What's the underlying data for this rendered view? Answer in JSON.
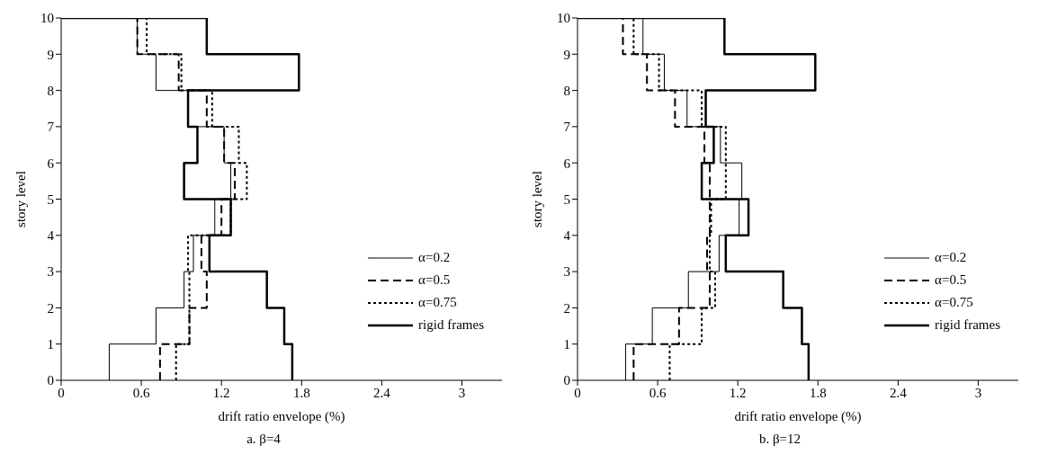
{
  "chart_data": [
    {
      "type": "line",
      "title": "a. β=4",
      "xlabel": "drift ratio envelope (%)",
      "ylabel": "story level",
      "xlim": [
        0,
        3.3
      ],
      "xticks": [
        0,
        0.6,
        1.2,
        1.8,
        2.4,
        3
      ],
      "ylim": [
        0,
        10
      ],
      "yticks": [
        0,
        1,
        2,
        3,
        4,
        5,
        6,
        7,
        8,
        9,
        10
      ],
      "legend": "bottom right",
      "marker": "none",
      "series": [
        {
          "name": "α=0.2",
          "color": "#000000",
          "line_style": "solid",
          "x": [
            0.36,
            0.36,
            0.71,
            0.71,
            0.92,
            0.92,
            0.99,
            0.99,
            1.15,
            1.15,
            1.27,
            1.27,
            1.22,
            1.22,
            0.95,
            0.95,
            0.71,
            0.71,
            0.57,
            0.57,
            0
          ],
          "values": [
            0,
            1,
            1,
            2,
            2,
            3,
            3,
            4,
            4,
            5,
            5,
            6,
            6,
            7,
            7,
            8,
            8,
            9,
            9,
            10,
            10
          ]
        },
        {
          "name": "α=0.5",
          "color": "#000000",
          "line_style": "dashed",
          "x": [
            0.74,
            0.74,
            0.96,
            0.96,
            1.09,
            1.09,
            1.05,
            1.05,
            1.2,
            1.2,
            1.3,
            1.3,
            1.22,
            1.22,
            1.09,
            1.09,
            0.88,
            0.88,
            0.57,
            0.57,
            0
          ],
          "values": [
            0,
            1,
            1,
            2,
            2,
            3,
            3,
            4,
            4,
            5,
            5,
            6,
            6,
            7,
            7,
            8,
            8,
            9,
            9,
            10,
            10
          ]
        },
        {
          "name": "α=0.75",
          "color": "#000000",
          "line_style": "dotted",
          "x": [
            0.86,
            0.86,
            0.96,
            0.96,
            0.96,
            0.96,
            0.95,
            0.95,
            1.27,
            1.27,
            1.39,
            1.39,
            1.33,
            1.33,
            1.13,
            1.13,
            0.9,
            0.9,
            0.64,
            0.64,
            0
          ],
          "values": [
            0,
            1,
            1,
            2,
            2,
            3,
            3,
            4,
            4,
            5,
            5,
            6,
            6,
            7,
            7,
            8,
            8,
            9,
            9,
            10,
            10
          ]
        },
        {
          "name": "rigid frames",
          "color": "#000000",
          "line_style": "solid",
          "x": [
            1.73,
            1.73,
            1.67,
            1.67,
            1.54,
            1.54,
            1.11,
            1.11,
            1.27,
            1.27,
            0.92,
            0.92,
            1.02,
            1.02,
            0.95,
            0.95,
            1.78,
            1.78,
            1.09,
            1.09,
            0
          ],
          "values": [
            0,
            1,
            1,
            2,
            2,
            3,
            3,
            4,
            4,
            5,
            5,
            6,
            6,
            7,
            7,
            8,
            8,
            9,
            9,
            10,
            10
          ]
        }
      ]
    },
    {
      "type": "line",
      "title": "b. β=12",
      "xlabel": "drift ratio envelope (%)",
      "ylabel": "story level",
      "xlim": [
        0,
        3.3
      ],
      "xticks": [
        0,
        0.6,
        1.2,
        1.8,
        2.4,
        3
      ],
      "ylim": [
        0,
        10
      ],
      "yticks": [
        0,
        1,
        2,
        3,
        4,
        5,
        6,
        7,
        8,
        9,
        10
      ],
      "legend": "bottom right",
      "marker": "none",
      "series": [
        {
          "name": "α=0.2",
          "color": "#000000",
          "line_style": "solid",
          "x": [
            0.36,
            0.36,
            0.56,
            0.56,
            0.83,
            0.83,
            1.06,
            1.06,
            1.21,
            1.21,
            1.23,
            1.23,
            1.07,
            1.07,
            0.82,
            0.82,
            0.65,
            0.65,
            0.49,
            0.49,
            0
          ],
          "values": [
            0,
            1,
            1,
            2,
            2,
            3,
            3,
            4,
            4,
            5,
            5,
            6,
            6,
            7,
            7,
            8,
            8,
            9,
            9,
            10,
            10
          ]
        },
        {
          "name": "α=0.5",
          "color": "#000000",
          "line_style": "dashed",
          "x": [
            0.42,
            0.42,
            0.76,
            0.76,
            0.99,
            0.99,
            0.97,
            0.97,
            0.99,
            0.99,
            0.99,
            0.99,
            0.95,
            0.95,
            0.73,
            0.73,
            0.52,
            0.52,
            0.34,
            0.34,
            0
          ],
          "values": [
            0,
            1,
            1,
            2,
            2,
            3,
            3,
            4,
            4,
            5,
            5,
            6,
            6,
            7,
            7,
            8,
            8,
            9,
            9,
            10,
            10
          ]
        },
        {
          "name": "α=0.75",
          "color": "#000000",
          "line_style": "dotted",
          "x": [
            0.69,
            0.69,
            0.93,
            0.93,
            1.03,
            1.03,
            0.99,
            0.99,
            1,
            1,
            1.11,
            1.11,
            1.11,
            1.11,
            0.93,
            0.93,
            0.61,
            0.61,
            0.42,
            0.42,
            0
          ],
          "values": [
            0,
            1,
            1,
            2,
            2,
            3,
            3,
            4,
            4,
            5,
            5,
            6,
            6,
            7,
            7,
            8,
            8,
            9,
            9,
            10,
            10
          ]
        },
        {
          "name": "rigid frames",
          "color": "#000000",
          "line_style": "solid",
          "x": [
            1.73,
            1.73,
            1.68,
            1.68,
            1.54,
            1.54,
            1.11,
            1.11,
            1.28,
            1.28,
            0.93,
            0.93,
            1.02,
            1.02,
            0.96,
            0.96,
            1.78,
            1.78,
            1.1,
            1.1,
            0
          ],
          "values": [
            0,
            1,
            1,
            2,
            2,
            3,
            3,
            4,
            4,
            5,
            5,
            6,
            6,
            7,
            7,
            8,
            8,
            9,
            9,
            10,
            10
          ]
        }
      ]
    }
  ]
}
